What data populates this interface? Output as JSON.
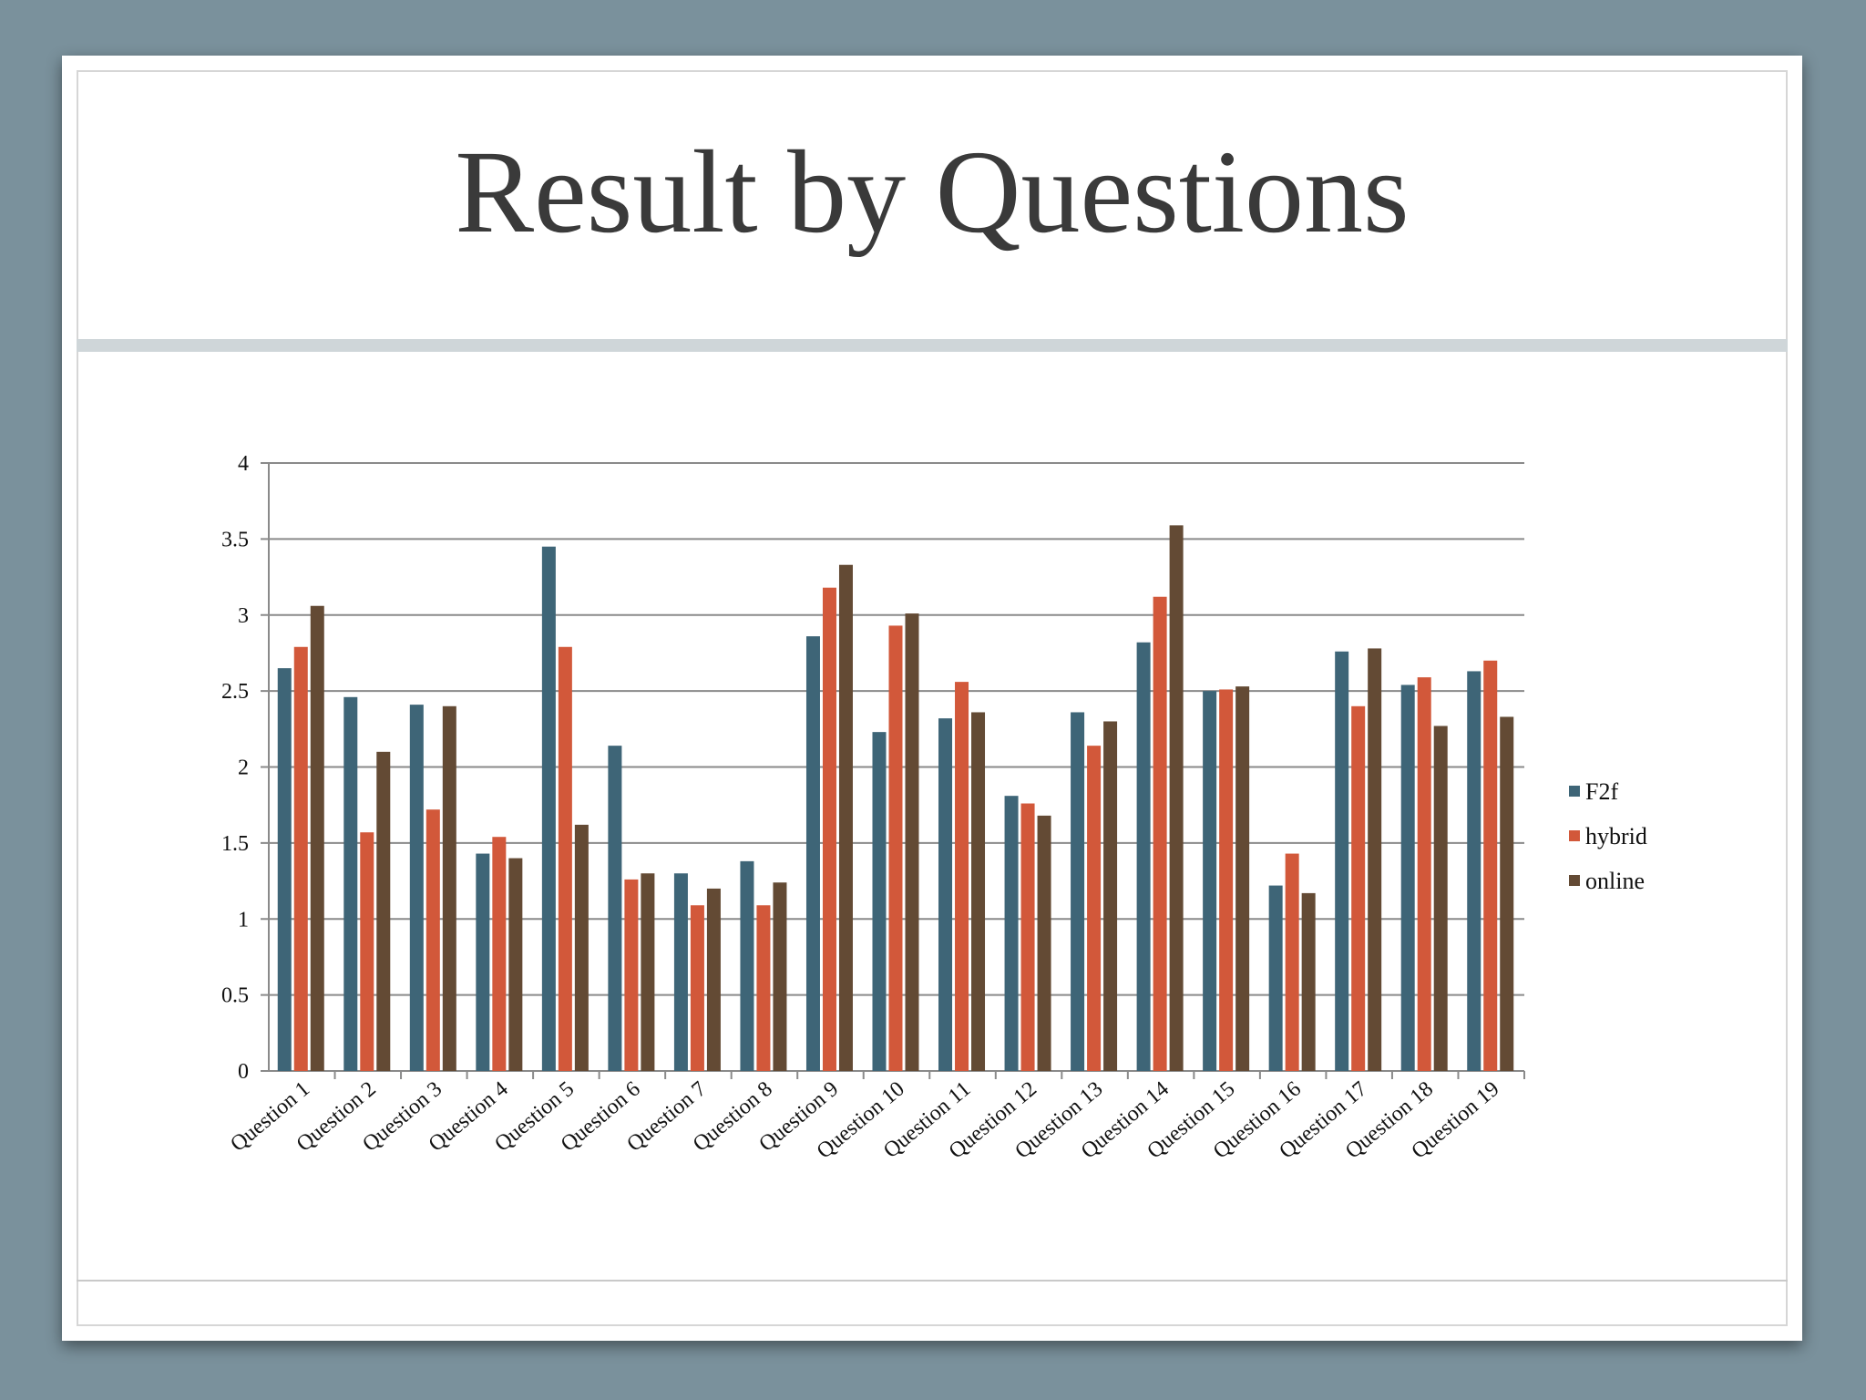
{
  "slide": {
    "title": "Result by Questions"
  },
  "colors": {
    "background": "#7a919c",
    "F2f": "#3e6577",
    "hybrid": "#d2583a",
    "online": "#634a34",
    "grid": "#8a8a8a"
  },
  "chart_data": {
    "type": "bar",
    "title": "",
    "xlabel": "",
    "ylabel": "",
    "ylim": [
      0,
      4
    ],
    "yticks": [
      "0",
      "0.5",
      "1",
      "1.5",
      "2",
      "2.5",
      "3",
      "3.5",
      "4"
    ],
    "grid": true,
    "legend_position": "right",
    "categories": [
      "Question 1",
      "Question 2",
      "Question 3",
      "Question 4",
      "Question 5",
      "Question 6",
      "Question 7",
      "Question 8",
      "Question 9",
      "Question 10",
      "Question 11",
      "Question 12",
      "Question 13",
      "Question 14",
      "Question 15",
      "Question 16",
      "Question 17",
      "Question 18",
      "Question 19"
    ],
    "series": [
      {
        "name": "F2f",
        "values": [
          2.65,
          2.46,
          2.41,
          1.43,
          3.45,
          2.14,
          1.3,
          1.38,
          2.86,
          2.23,
          2.32,
          1.81,
          2.36,
          2.82,
          2.5,
          1.22,
          2.76,
          2.54,
          2.63
        ]
      },
      {
        "name": "hybrid",
        "values": [
          2.79,
          1.57,
          1.72,
          1.54,
          2.79,
          1.26,
          1.09,
          1.09,
          3.18,
          2.93,
          2.56,
          1.76,
          2.14,
          3.12,
          2.51,
          1.43,
          2.4,
          2.59,
          2.7
        ]
      },
      {
        "name": "online",
        "values": [
          3.06,
          2.1,
          2.4,
          1.4,
          1.62,
          1.3,
          1.2,
          1.24,
          3.33,
          3.01,
          2.36,
          1.68,
          2.3,
          3.59,
          2.53,
          1.17,
          2.78,
          2.27,
          2.33
        ]
      }
    ]
  }
}
